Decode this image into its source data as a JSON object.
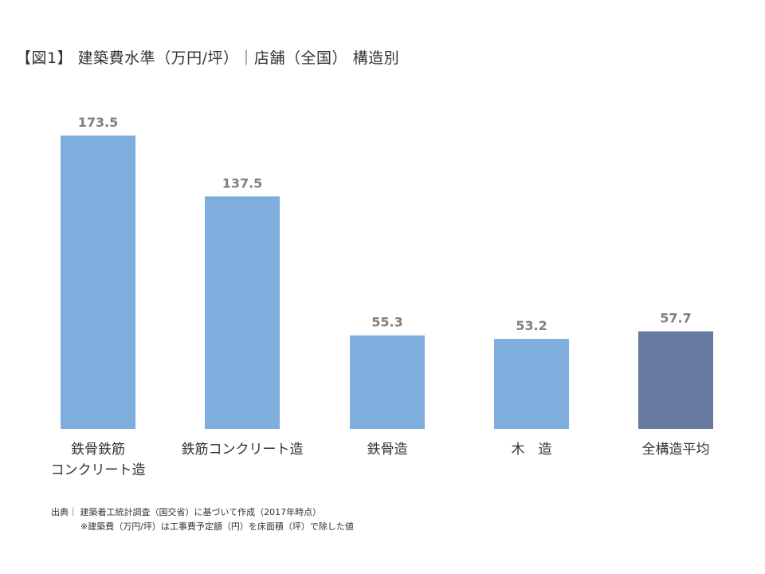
{
  "chart_data": {
    "type": "bar",
    "title": "【図1】 建築費水準（万円/坪）｜店舗（全国） 構造別",
    "categories": [
      [
        "鉄骨鉄筋",
        "コンクリート造"
      ],
      [
        "鉄筋コンクリート造"
      ],
      [
        "鉄骨造"
      ],
      [
        "木　造"
      ],
      [
        "全構造平均"
      ]
    ],
    "values": [
      173.5,
      137.5,
      55.3,
      53.2,
      57.7
    ],
    "value_labels": [
      "173.5",
      "137.5",
      "55.3",
      "53.2",
      "57.7"
    ],
    "colors": [
      "#7eadde",
      "#7eadde",
      "#7eadde",
      "#7eadde",
      "#67799f"
    ],
    "ylim": [
      0,
      173.5
    ],
    "grid": false,
    "xlabel": "",
    "ylabel": ""
  },
  "notes": {
    "source": "出典｜ 建築着工統計調査（国交省）に基づいて作成（2017年時点）",
    "formula": "※建築費（万円/坪）は工事費予定額（円）を床面積（坪）で除した値"
  }
}
